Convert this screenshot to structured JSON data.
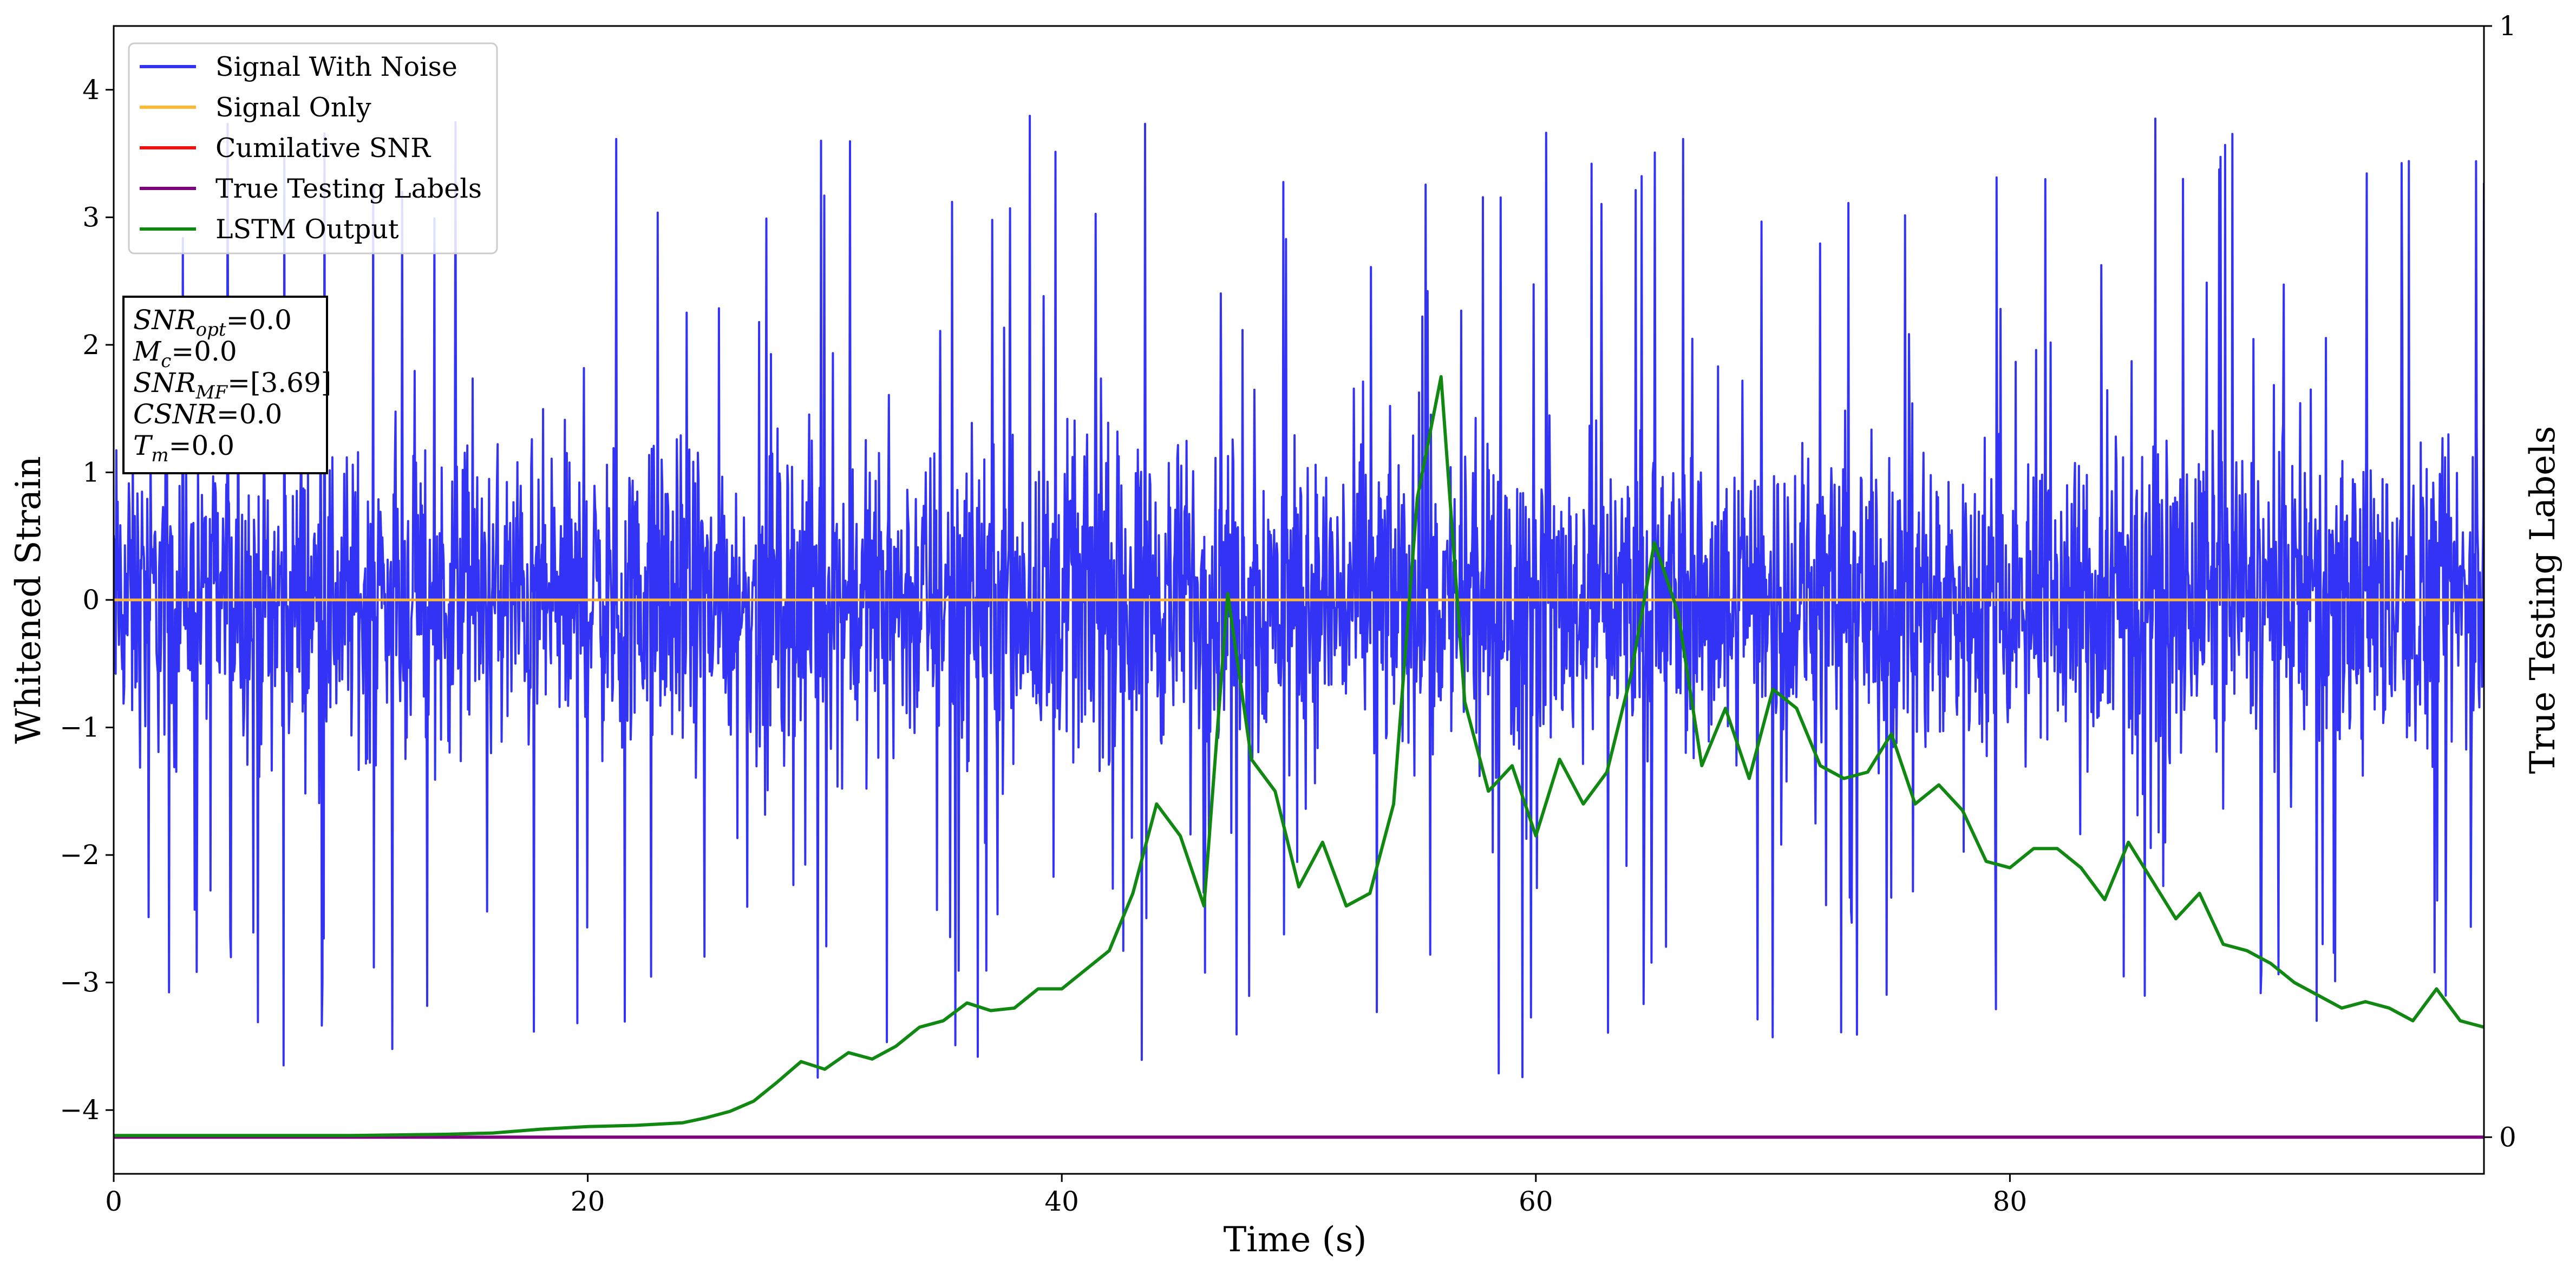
{
  "chart_data": {
    "type": "line",
    "title": "",
    "xlabel": "Time (s)",
    "ylabel": "Whitened Strain",
    "y2label": "True Testing Labels",
    "xlim": [
      0,
      100
    ],
    "ylim": [
      -4.5,
      4.5
    ],
    "y2lim": [
      -0.033,
      1.0
    ],
    "xticks": [
      0,
      20,
      40,
      60,
      80
    ],
    "yticks": [
      -4,
      -3,
      -2,
      -1,
      0,
      1,
      2,
      3,
      4
    ],
    "y2ticks": [
      0,
      1
    ],
    "legend_position": "upper-left",
    "grid": false,
    "series": [
      {
        "name": "Signal With Noise",
        "color": "#3333f5",
        "axis": "left",
        "description": "dense noise, sampled",
        "noise": {
          "count": 3600,
          "center": 0.0,
          "core_spread": 0.9,
          "max_up": 4.05,
          "max_down": -4.1
        }
      },
      {
        "name": "Signal Only",
        "color": "#ffb833",
        "axis": "left",
        "x": [
          0,
          100
        ],
        "y": [
          0,
          0
        ]
      },
      {
        "name": "Cumilative SNR",
        "color": "#ee1111",
        "axis": "left",
        "x": [
          0,
          100
        ],
        "y": [
          0,
          0
        ]
      },
      {
        "name": "True Testing Labels",
        "color": "#800080",
        "axis": "right",
        "x": [
          0,
          100
        ],
        "y": [
          0,
          0
        ]
      },
      {
        "name": "LSTM Output",
        "color": "#118811",
        "axis": "left",
        "x": [
          0,
          10,
          14,
          16,
          18,
          20,
          22,
          24,
          25,
          26,
          27,
          28,
          29,
          30,
          31,
          32,
          33,
          34,
          35,
          36,
          37,
          38,
          39,
          40,
          41,
          42,
          43,
          44,
          45,
          46,
          47,
          48,
          49,
          50,
          51,
          52,
          53,
          54,
          55,
          56,
          57,
          58,
          59,
          60,
          61,
          62,
          63,
          64,
          65,
          66,
          67,
          68,
          69,
          70,
          71,
          72,
          73,
          74,
          75,
          76,
          77,
          78,
          79,
          80,
          81,
          82,
          83,
          84,
          85,
          86,
          87,
          88,
          89,
          90,
          91,
          92,
          93,
          94,
          95,
          96,
          97,
          98,
          99,
          100
        ],
        "y": [
          -4.2,
          -4.2,
          -4.19,
          -4.18,
          -4.15,
          -4.13,
          -4.12,
          -4.1,
          -4.06,
          -4.01,
          -3.93,
          -3.78,
          -3.62,
          -3.68,
          -3.55,
          -3.6,
          -3.5,
          -3.35,
          -3.3,
          -3.16,
          -3.22,
          -3.2,
          -3.05,
          -3.05,
          -2.9,
          -2.75,
          -2.3,
          -1.6,
          -1.85,
          -2.4,
          0.05,
          -1.25,
          -1.5,
          -2.25,
          -1.9,
          -2.4,
          -2.3,
          -1.6,
          0.8,
          1.75,
          -0.8,
          -1.5,
          -1.3,
          -1.85,
          -1.25,
          -1.6,
          -1.35,
          -0.6,
          0.45,
          -0.1,
          -1.3,
          -0.85,
          -1.4,
          -0.7,
          -0.85,
          -1.3,
          -1.4,
          -1.35,
          -1.05,
          -1.6,
          -1.45,
          -1.65,
          -2.05,
          -2.1,
          -1.95,
          -1.95,
          -2.1,
          -2.35,
          -1.9,
          -2.2,
          -2.5,
          -2.3,
          -2.7,
          -2.75,
          -2.85,
          -3.0,
          -3.1,
          -3.2,
          -3.15,
          -3.2,
          -3.3,
          -3.05,
          -3.3,
          -3.35
        ]
      }
    ],
    "info_box": [
      "SNR_opt=0.0",
      "M_c=0.0",
      "SNR_MF=[3.69]",
      "CSNR=0.0",
      "T_m=0.0"
    ]
  }
}
